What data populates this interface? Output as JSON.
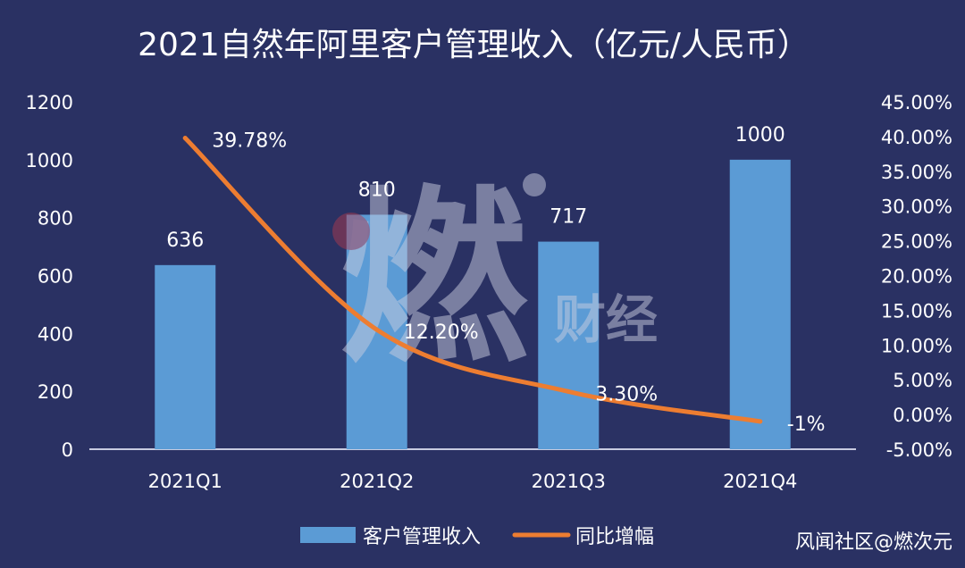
{
  "chart_data": {
    "type": "bar",
    "title": "2021自然年阿里客户管理收入（亿元/人民币）",
    "categories": [
      "2021Q1",
      "2021Q2",
      "2021Q3",
      "2021Q4"
    ],
    "series": [
      {
        "name": "客户管理收入",
        "type": "bar",
        "axis": "left",
        "values": [
          636,
          810,
          717,
          1000
        ],
        "labels": [
          "636",
          "810",
          "717",
          "1000"
        ],
        "color": "#5b9bd5"
      },
      {
        "name": "同比增幅",
        "type": "line",
        "axis": "right",
        "values": [
          39.78,
          12.2,
          3.3,
          -1
        ],
        "labels": [
          "39.78%",
          "12.20%",
          "3.30%",
          "-1%"
        ],
        "color": "#ed7d31"
      }
    ],
    "y_left": {
      "ylim": [
        0,
        1200
      ],
      "ticks": [
        0,
        200,
        400,
        600,
        800,
        1000,
        1200
      ],
      "tick_labels": [
        "0",
        "200",
        "400",
        "600",
        "800",
        "1000",
        "1200"
      ]
    },
    "y_right": {
      "ylim": [
        -5,
        45
      ],
      "ticks": [
        -5,
        0,
        5,
        10,
        15,
        20,
        25,
        30,
        35,
        40,
        45
      ],
      "tick_labels": [
        "-5.00%",
        "0.00%",
        "5.00%",
        "10.00%",
        "15.00%",
        "20.00%",
        "25.00%",
        "30.00%",
        "35.00%",
        "40.00%",
        "45.00%"
      ]
    },
    "grid": false,
    "legend_position": "bottom-center",
    "background": "#2a3163"
  },
  "watermark": {
    "main": "燃",
    "sub": "财经"
  },
  "credit": "风闻社区@燃次元"
}
